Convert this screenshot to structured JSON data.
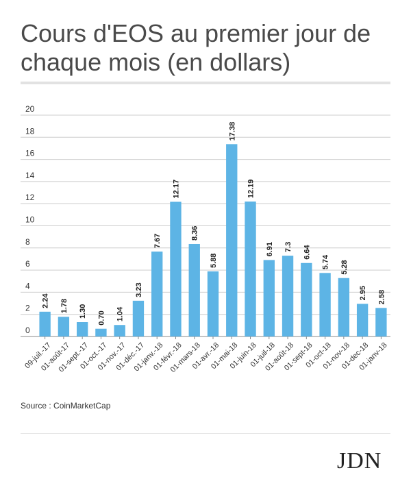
{
  "header": {
    "title": "Cours d'EOS au premier jour de chaque mois (en dollars)"
  },
  "footer": {
    "source": "Source : CoinMarketCap",
    "logo": "JDN"
  },
  "colors": {
    "bar": "#5db4e5",
    "grid": "#cccccc",
    "axis": "#888888",
    "text": "#333333"
  },
  "chart_data": {
    "type": "bar",
    "title": "Cours d'EOS au premier jour de chaque mois (en dollars)",
    "xlabel": "",
    "ylabel": "",
    "ylim": [
      0,
      20
    ],
    "yticks": [
      0,
      2,
      4,
      6,
      8,
      10,
      12,
      14,
      16,
      18,
      20
    ],
    "grid": true,
    "categories": [
      "09-juil.-17",
      "01-août-17",
      "01-sept.-17",
      "01-oct.-17",
      "01-nov.-17",
      "01-déc.-17",
      "01-janv.-18",
      "01-févr.-18",
      "01-mars-18",
      "01-avr.-18",
      "01-mai-18",
      "01-juin-18",
      "01-juil-18",
      "01-août-18",
      "01-sept-18",
      "01-oct-18",
      "01-nov-18",
      "01-dec-18",
      "01-janv-18"
    ],
    "values": [
      2.24,
      1.78,
      1.3,
      0.7,
      1.04,
      3.23,
      7.67,
      12.17,
      8.36,
      5.88,
      17.38,
      12.19,
      6.91,
      7.3,
      6.64,
      5.74,
      5.28,
      2.95,
      2.58
    ],
    "data_labels": [
      "2.24",
      "1.78",
      "1.30",
      "0.70",
      "1.04",
      "3.23",
      "7.67",
      "12.17",
      "8.36",
      "5.88",
      "17.38",
      "12.19",
      "6.91",
      "7.3",
      "6.64",
      "5.74",
      "5.28",
      "2.95",
      "2.58"
    ]
  }
}
